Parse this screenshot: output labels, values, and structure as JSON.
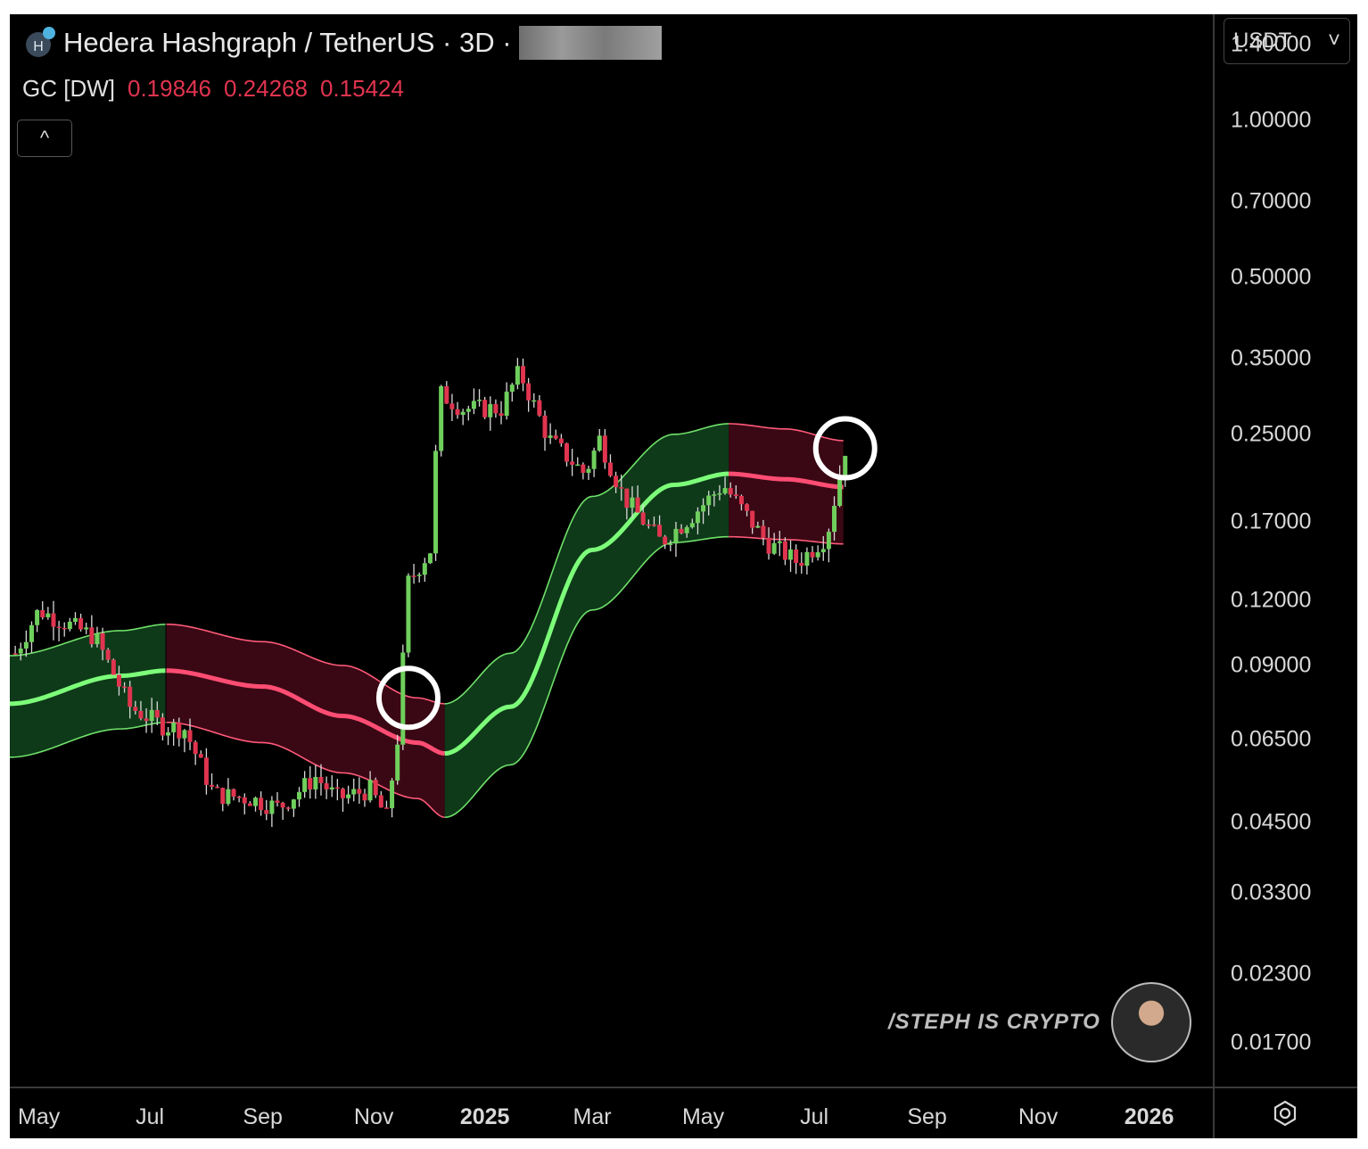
{
  "header": {
    "title": "Hedera Hashgraph / TetherUS · 3D ·",
    "indicator_label": "GC [DW]",
    "indicator_values": [
      "0.19846",
      "0.24268",
      "0.15424"
    ],
    "collapse_glyph": "^"
  },
  "price_axis": {
    "currency": "USDT",
    "dropdown_glyph": "˅",
    "ticks": [
      "1.40000",
      "1.00000",
      "0.70000",
      "0.50000",
      "0.35000",
      "0.25000",
      "0.17000",
      "0.12000",
      "0.09000",
      "0.06500",
      "0.04500",
      "0.03300",
      "0.02300",
      "0.01700"
    ]
  },
  "time_axis": {
    "ticks": [
      "May",
      "Jul",
      "Sep",
      "Nov",
      "2025",
      "Mar",
      "May",
      "Jul",
      "Sep",
      "Nov",
      "2026"
    ],
    "bold": [
      false,
      false,
      false,
      false,
      true,
      false,
      false,
      false,
      false,
      false,
      true
    ]
  },
  "watermark": {
    "text": "/STEPH IS CRYPTO"
  },
  "icons": {
    "settings": "gear-icon",
    "logo": "hedera-logo-icon"
  },
  "colors": {
    "bull": "#6fcf5c",
    "bear": "#e0344f",
    "band_green_fill": "#0f3d1a",
    "band_red_fill": "#3d0815",
    "midline_green": "#7dff7a",
    "midline_red": "#ff4d73",
    "highlight_circle": "#ffffff"
  },
  "chart_data": {
    "type": "candlestick",
    "title": "Hedera Hashgraph / TetherUS · 3D",
    "y_scale": "log",
    "ylim": [
      0.014,
      1.6
    ],
    "x_range": [
      "2024-04-15",
      "2026-02-05"
    ],
    "price_path": [
      {
        "date": "2024-04-18",
        "price": 0.095
      },
      {
        "date": "2024-05-01",
        "price": 0.115
      },
      {
        "date": "2024-05-12",
        "price": 0.11
      },
      {
        "date": "2024-06-01",
        "price": 0.102
      },
      {
        "date": "2024-06-20",
        "price": 0.075
      },
      {
        "date": "2024-07-08",
        "price": 0.069
      },
      {
        "date": "2024-07-20",
        "price": 0.068
      },
      {
        "date": "2024-08-05",
        "price": 0.051
      },
      {
        "date": "2024-08-25",
        "price": 0.05
      },
      {
        "date": "2024-09-10",
        "price": 0.048
      },
      {
        "date": "2024-09-30",
        "price": 0.055
      },
      {
        "date": "2024-10-12",
        "price": 0.05
      },
      {
        "date": "2024-10-30",
        "price": 0.052
      },
      {
        "date": "2024-11-08",
        "price": 0.046
      },
      {
        "date": "2024-11-14",
        "price": 0.065
      },
      {
        "date": "2024-11-20",
        "price": 0.13
      },
      {
        "date": "2024-12-02",
        "price": 0.15
      },
      {
        "date": "2024-12-07",
        "price": 0.3
      },
      {
        "date": "2024-12-20",
        "price": 0.28
      },
      {
        "date": "2025-01-10",
        "price": 0.28
      },
      {
        "date": "2025-01-20",
        "price": 0.33
      },
      {
        "date": "2025-02-05",
        "price": 0.245
      },
      {
        "date": "2025-02-25",
        "price": 0.21
      },
      {
        "date": "2025-03-05",
        "price": 0.245
      },
      {
        "date": "2025-03-18",
        "price": 0.19
      },
      {
        "date": "2025-04-08",
        "price": 0.155
      },
      {
        "date": "2025-04-25",
        "price": 0.175
      },
      {
        "date": "2025-05-12",
        "price": 0.2
      },
      {
        "date": "2025-06-05",
        "price": 0.155
      },
      {
        "date": "2025-06-22",
        "price": 0.142
      },
      {
        "date": "2025-07-08",
        "price": 0.16
      },
      {
        "date": "2025-07-18",
        "price": 0.235
      }
    ],
    "gaussian_channel": {
      "dates": [
        "2024-04-15",
        "2024-06-15",
        "2024-07-10",
        "2024-09-01",
        "2024-10-15",
        "2024-11-25",
        "2024-12-10",
        "2025-01-15",
        "2025-03-01",
        "2025-04-15",
        "2025-05-15",
        "2025-06-15",
        "2025-07-18"
      ],
      "mid": [
        0.076,
        0.086,
        0.088,
        0.082,
        0.072,
        0.064,
        0.061,
        0.075,
        0.15,
        0.2,
        0.21,
        0.205,
        0.198
      ],
      "upper": [
        0.094,
        0.105,
        0.108,
        0.1,
        0.09,
        0.078,
        0.076,
        0.095,
        0.19,
        0.25,
        0.262,
        0.256,
        0.243
      ],
      "lower": [
        0.06,
        0.068,
        0.07,
        0.064,
        0.056,
        0.05,
        0.046,
        0.058,
        0.115,
        0.155,
        0.159,
        0.157,
        0.154
      ],
      "trend_segments": [
        {
          "from": "2024-04-15",
          "to": "2024-07-10",
          "trend": "up"
        },
        {
          "from": "2024-07-10",
          "to": "2024-12-10",
          "trend": "down"
        },
        {
          "from": "2024-12-10",
          "to": "2025-05-15",
          "trend": "up"
        },
        {
          "from": "2025-05-15",
          "to": "2025-07-18",
          "trend": "down"
        }
      ]
    },
    "annotations": [
      {
        "type": "circle",
        "date": "2024-11-20",
        "price": 0.078
      },
      {
        "type": "circle",
        "date": "2025-07-18",
        "price": 0.235
      }
    ]
  }
}
